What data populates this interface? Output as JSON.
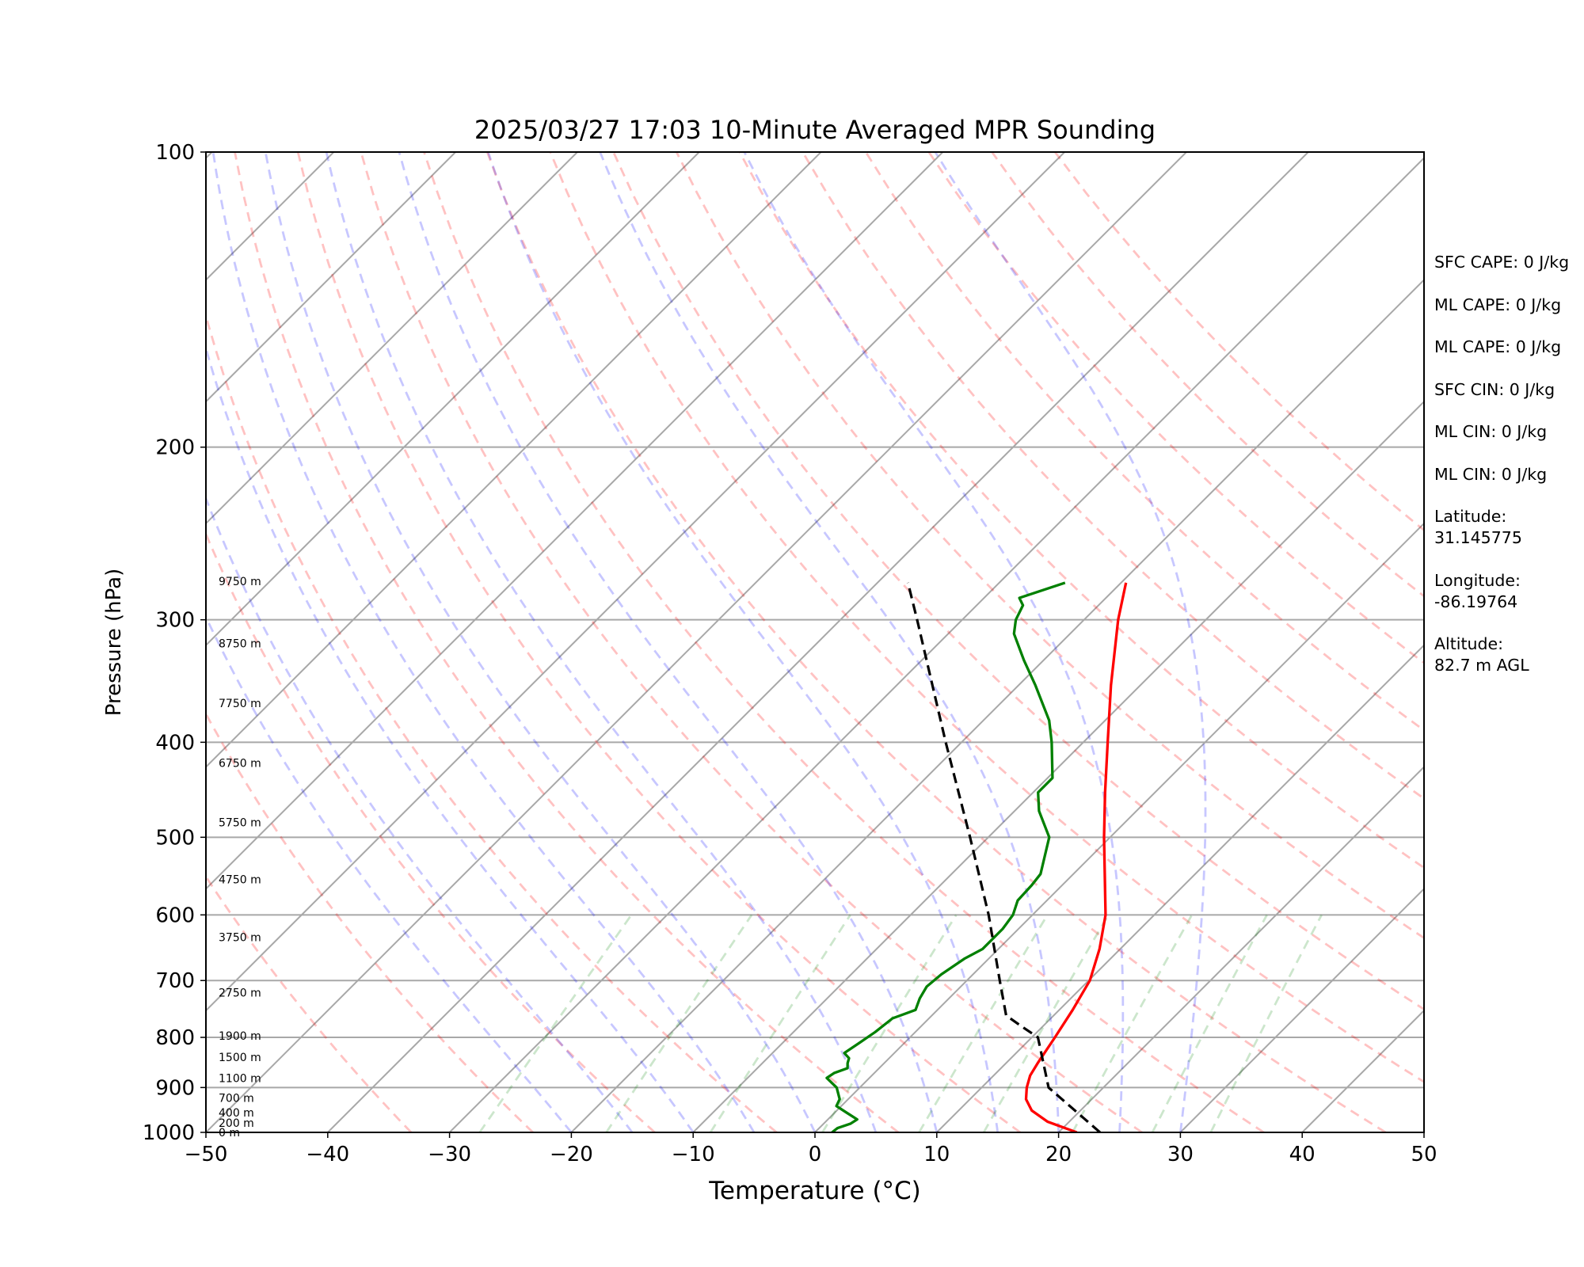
{
  "chart_data": {
    "type": "skew-t log-p sounding",
    "title": "2025/03/27 17:03 10-Minute Averaged MPR Sounding",
    "xlabel": "Temperature (°C)",
    "ylabel": "Pressure (hPa)",
    "xlim": [
      -50,
      50
    ],
    "ylim": [
      1000,
      100
    ],
    "y_scale": "log",
    "x_ticks": [
      "−50",
      "−40",
      "−30",
      "−20",
      "−10",
      "0",
      "10",
      "20",
      "30",
      "40",
      "50"
    ],
    "y_ticks": [
      "100",
      "200",
      "300",
      "400",
      "500",
      "600",
      "700",
      "800",
      "900",
      "1000"
    ],
    "grid": true,
    "series": [
      {
        "role": "temperature",
        "color": "#ff0000",
        "style": "solid",
        "points": [
          [
            1000,
            21.5
          ],
          [
            975,
            18.2
          ],
          [
            950,
            16.0
          ],
          [
            925,
            14.6
          ],
          [
            900,
            13.7
          ],
          [
            875,
            13.0
          ],
          [
            850,
            12.6
          ],
          [
            800,
            11.9
          ],
          [
            750,
            11.1
          ],
          [
            700,
            10.1
          ],
          [
            650,
            8.3
          ],
          [
            600,
            6.0
          ],
          [
            550,
            2.9
          ],
          [
            500,
            -0.5
          ],
          [
            450,
            -4.1
          ],
          [
            400,
            -8.0
          ],
          [
            350,
            -12.4
          ],
          [
            300,
            -17.2
          ],
          [
            275,
            -19.6
          ]
        ]
      },
      {
        "role": "dewpoint",
        "color": "#008000",
        "style": "solid",
        "points": [
          [
            1000,
            1.4
          ],
          [
            990,
            1.5
          ],
          [
            980,
            2.2
          ],
          [
            970,
            2.4
          ],
          [
            955,
            1.0
          ],
          [
            940,
            -0.4
          ],
          [
            925,
            -0.7
          ],
          [
            900,
            -1.9
          ],
          [
            880,
            -3.5
          ],
          [
            870,
            -3.3
          ],
          [
            860,
            -2.6
          ],
          [
            850,
            -3.0
          ],
          [
            840,
            -3.3
          ],
          [
            830,
            -4.1
          ],
          [
            810,
            -3.7
          ],
          [
            790,
            -3.3
          ],
          [
            765,
            -3.0
          ],
          [
            750,
            -1.8
          ],
          [
            730,
            -2.4
          ],
          [
            710,
            -2.8
          ],
          [
            690,
            -2.6
          ],
          [
            665,
            -2.0
          ],
          [
            650,
            -1.3
          ],
          [
            620,
            -1.3
          ],
          [
            600,
            -1.6
          ],
          [
            580,
            -2.4
          ],
          [
            560,
            -2.5
          ],
          [
            545,
            -2.7
          ],
          [
            500,
            -5.0
          ],
          [
            470,
            -8.0
          ],
          [
            450,
            -9.6
          ],
          [
            435,
            -9.6
          ],
          [
            400,
            -12.6
          ],
          [
            380,
            -14.6
          ],
          [
            350,
            -18.6
          ],
          [
            330,
            -21.6
          ],
          [
            310,
            -24.6
          ],
          [
            300,
            -25.6
          ],
          [
            290,
            -26.2
          ],
          [
            285,
            -27.1
          ],
          [
            275,
            -24.6
          ]
        ]
      },
      {
        "role": "parcel",
        "color": "#000000",
        "style": "dashed",
        "points": [
          [
            1000,
            23.4
          ],
          [
            900,
            15.5
          ],
          [
            800,
            10.5
          ],
          [
            780,
            8.3
          ],
          [
            760,
            6.1
          ],
          [
            700,
            2.7
          ],
          [
            600,
            -3.6
          ],
          [
            500,
            -11.5
          ],
          [
            400,
            -21.3
          ],
          [
            300,
            -33.7
          ],
          [
            275,
            -37.5
          ]
        ]
      }
    ],
    "height_labels": [
      {
        "pressure": 1000,
        "label": "0 m"
      },
      {
        "pressure": 978,
        "label": "200 m"
      },
      {
        "pressure": 955,
        "label": "400 m"
      },
      {
        "pressure": 922,
        "label": "700 m"
      },
      {
        "pressure": 880,
        "label": "1100 m"
      },
      {
        "pressure": 838,
        "label": "1500 m"
      },
      {
        "pressure": 797,
        "label": "1900 m"
      },
      {
        "pressure": 720,
        "label": "2750 m"
      },
      {
        "pressure": 632,
        "label": "3750 m"
      },
      {
        "pressure": 552,
        "label": "4750 m"
      },
      {
        "pressure": 483,
        "label": "5750 m"
      },
      {
        "pressure": 420,
        "label": "6750 m"
      },
      {
        "pressure": 365,
        "label": "7750 m"
      },
      {
        "pressure": 317,
        "label": "8750 m"
      },
      {
        "pressure": 274,
        "label": "9750 m"
      }
    ],
    "reference_lines": {
      "isotherms": {
        "color": "#808080",
        "values": [
          -160,
          -150,
          -140,
          -130,
          -120,
          -110,
          -100,
          -90,
          -80,
          -70,
          -60,
          -50,
          -40,
          -30,
          -20,
          -10,
          0,
          10,
          20,
          30,
          40,
          50
        ]
      },
      "dry_adiabats": {
        "color": "#ff0000",
        "style": "dashed",
        "theta_K": [
          240,
          250,
          260,
          270,
          280,
          290,
          300,
          310,
          320,
          330,
          340,
          350,
          360,
          370,
          380,
          390,
          400,
          410
        ]
      },
      "moist_adiabats": {
        "color": "#0000ff",
        "style": "dashed",
        "theta_w_C": [
          -20,
          -15,
          -10,
          -5,
          0,
          5,
          10,
          15,
          20,
          25,
          30
        ]
      },
      "mixing_ratio_lines": {
        "color": "#008000",
        "style": "dashed",
        "w_g_per_kg": [
          0.4,
          1,
          2,
          4,
          7,
          10,
          16,
          24,
          32
        ]
      }
    }
  },
  "stats": [
    "SFC CAPE: 0 J/kg",
    "ML CAPE: 0 J/kg",
    "ML CAPE: 0 J/kg",
    "SFC CIN: 0 J/kg",
    "ML CIN: 0 J/kg",
    "ML CIN: 0 J/kg"
  ],
  "location": {
    "latitude_label": "Latitude:",
    "latitude": "31.145775",
    "longitude_label": "Longitude:",
    "longitude": "-86.19764",
    "altitude_label": "Altitude:",
    "altitude": "82.7 m AGL"
  }
}
